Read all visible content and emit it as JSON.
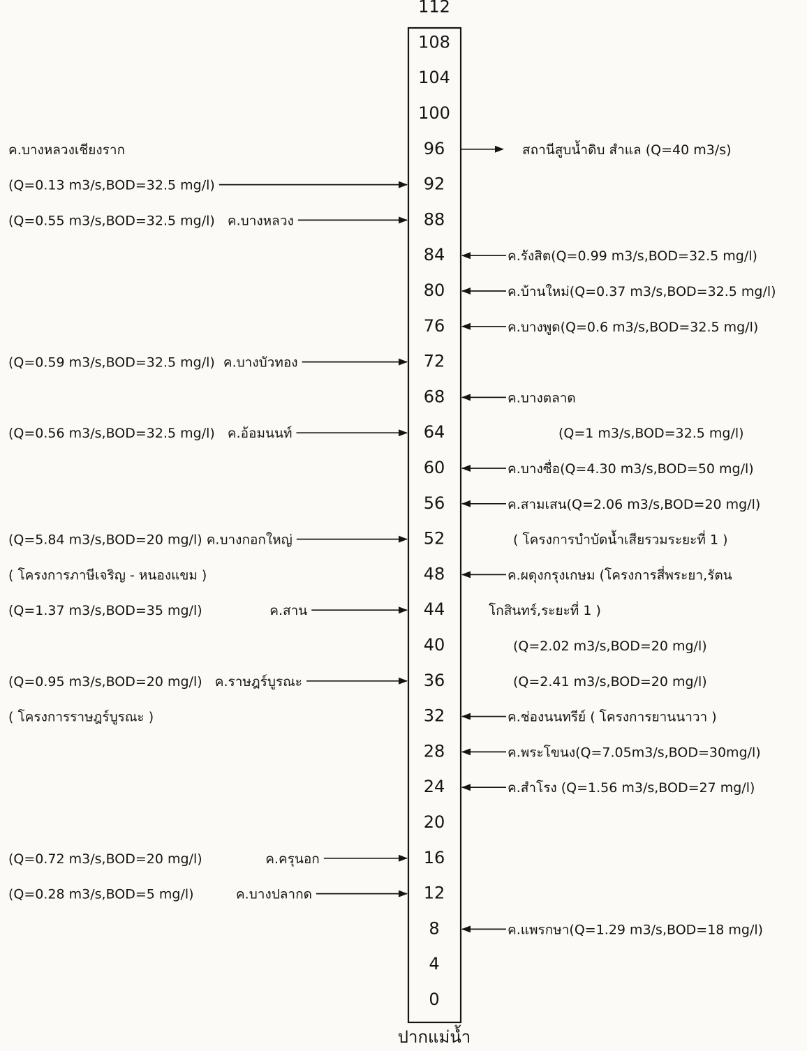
{
  "diagram": {
    "mouth_label": "ปากแม่น้ำ",
    "km_marks": [
      "112",
      "108",
      "104",
      "100",
      "96",
      "92",
      "88",
      "84",
      "80",
      "76",
      "72",
      "68",
      "64",
      "60",
      "56",
      "52",
      "48",
      "44",
      "40",
      "36",
      "32",
      "28",
      "24",
      "20",
      "16",
      "12",
      "8",
      "4",
      "0"
    ],
    "left_annotations": [
      {
        "km": "96",
        "text": "ค.บางหลวงเชียงราก"
      },
      {
        "km": "92",
        "text": "(Q=0.13 m3/s,BOD=32.5 mg/l)",
        "arrow": "in"
      },
      {
        "km": "88",
        "text": "(Q=0.55 m3/s,BOD=32.5 mg/l)   ค.บางหลวง",
        "arrow": "in"
      },
      {
        "km": "72",
        "text": "(Q=0.59 m3/s,BOD=32.5 mg/l)  ค.บางบัวทอง",
        "arrow": "in"
      },
      {
        "km": "64",
        "text": "(Q=0.56 m3/s,BOD=32.5 mg/l)   ค.อ้อมนนท์",
        "arrow": "in"
      },
      {
        "km": "52",
        "text": "(Q=5.84 m3/s,BOD=20 mg/l) ค.บางกอกใหญ่",
        "arrow": "in"
      },
      {
        "km": "48",
        "text": "( โครงการภาษีเจริญ - หนองแขม )"
      },
      {
        "km": "44",
        "text": "(Q=1.37 m3/s,BOD=35 mg/l)                ค.สาน",
        "arrow": "in"
      },
      {
        "km": "36",
        "text": "(Q=0.95 m3/s,BOD=20 mg/l)   ค.ราษฎร์บูรณะ",
        "arrow": "in"
      },
      {
        "km": "32",
        "text": "( โครงการราษฎร์บูรณะ )"
      },
      {
        "km": "16",
        "text": "(Q=0.72 m3/s,BOD=20 mg/l)               ค.ครุนอก",
        "arrow": "in"
      },
      {
        "km": "12",
        "text": "(Q=0.28 m3/s,BOD=5 mg/l)          ค.บางปลากด",
        "arrow": "in"
      }
    ],
    "right_annotations": [
      {
        "km": "96",
        "text": "สถานีสูบน้ำดิบ สำแล (Q=40 m3/s)",
        "arrow": "out"
      },
      {
        "km": "84",
        "text": "ค.รังสิต(Q=0.99 m3/s,BOD=32.5 mg/l)",
        "arrow": "in"
      },
      {
        "km": "80",
        "text": "ค.บ้านใหม่(Q=0.37 m3/s,BOD=32.5 mg/l)",
        "arrow": "in"
      },
      {
        "km": "76",
        "text": "ค.บางพูด(Q=0.6 m3/s,BOD=32.5 mg/l)",
        "arrow": "in"
      },
      {
        "km": "68",
        "text": "ค.บางตลาด",
        "arrow": "in"
      },
      {
        "km": "64",
        "text": "(Q=1 m3/s,BOD=32.5 mg/l)"
      },
      {
        "km": "60",
        "text": "ค.บางซื่อ(Q=4.30 m3/s,BOD=50 mg/l)",
        "arrow": "in"
      },
      {
        "km": "56",
        "text": "ค.สามเสน(Q=2.06 m3/s,BOD=20 mg/l)",
        "arrow": "in"
      },
      {
        "km": "52",
        "text": "( โครงการบำบัดน้ำเสียรวมระยะที่ 1 )"
      },
      {
        "km": "48",
        "text": "ค.ผดุงกรุงเกษม (โครงการสี่พระยา,รัตน",
        "arrow": "in"
      },
      {
        "km": "44",
        "text": "โกสินทร์,ระยะที่ 1 )"
      },
      {
        "km": "40",
        "text": "(Q=2.02 m3/s,BOD=20 mg/l)"
      },
      {
        "km": "36",
        "text": "(Q=2.41 m3/s,BOD=20 mg/l)"
      },
      {
        "km": "32",
        "text": "ค.ช่องนนทรีย์ ( โครงการยานนาวา )",
        "arrow": "in"
      },
      {
        "km": "28",
        "text": "ค.พระโขนง(Q=7.05m3/s,BOD=30mg/l)",
        "arrow": "in"
      },
      {
        "km": "24",
        "text": "ค.สำโรง (Q=1.56 m3/s,BOD=27 mg/l)",
        "arrow": "in"
      },
      {
        "km": "8",
        "text": "ค.แพรกษา(Q=1.29 m3/s,BOD=18 mg/l)",
        "arrow": "in"
      }
    ]
  }
}
